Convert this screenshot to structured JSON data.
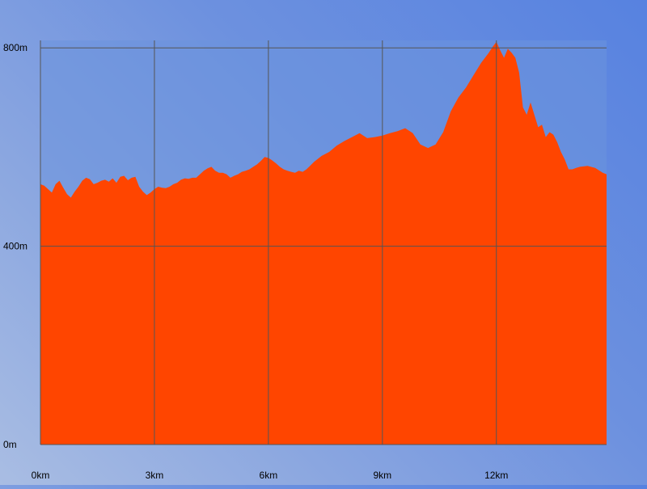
{
  "colors": {
    "fill": "#ff4500",
    "plot_background": "#6c93dd",
    "grid": "#555555"
  },
  "chart_data": {
    "type": "area",
    "title": "",
    "xlabel": "",
    "ylabel": "",
    "x_unit": "km",
    "y_unit": "m",
    "xlim": [
      0,
      14.9
    ],
    "ylim": [
      0,
      815
    ],
    "grid": true,
    "legend": "none",
    "x_ticks": [
      {
        "value": 0,
        "label": "0km"
      },
      {
        "value": 3,
        "label": "3km"
      },
      {
        "value": 6,
        "label": "6km"
      },
      {
        "value": 9,
        "label": "9km"
      },
      {
        "value": 12,
        "label": "12km"
      }
    ],
    "y_ticks": [
      {
        "value": 0,
        "label": "0m"
      },
      {
        "value": 400,
        "label": "400m"
      },
      {
        "value": 800,
        "label": "800m"
      }
    ],
    "series": [
      {
        "x": [
          0,
          0.1,
          0.2,
          0.3,
          0.4,
          0.5,
          0.6,
          0.7,
          0.8,
          0.9,
          1.0,
          1.1,
          1.2,
          1.3,
          1.4,
          1.5,
          1.6,
          1.7,
          1.8,
          1.9,
          2.0,
          2.1,
          2.2,
          2.3,
          2.4,
          2.5,
          2.6,
          2.7,
          2.8,
          2.9,
          3.0,
          3.1,
          3.2,
          3.3,
          3.4,
          3.5,
          3.6,
          3.7,
          3.8,
          3.9,
          4.0,
          4.1,
          4.2,
          4.3,
          4.4,
          4.5,
          4.6,
          4.7,
          4.8,
          4.9,
          5.0,
          5.1,
          5.2,
          5.3,
          5.4,
          5.5,
          5.6,
          5.7,
          5.8,
          5.9,
          6.0,
          6.1,
          6.2,
          6.3,
          6.4,
          6.5,
          6.6,
          6.7,
          6.8,
          6.9,
          7.0,
          7.2,
          7.4,
          7.6,
          7.8,
          8.0,
          8.2,
          8.4,
          8.6,
          8.8,
          9.0,
          9.2,
          9.4,
          9.6,
          9.8,
          10.0,
          10.2,
          10.4,
          10.6,
          10.8,
          11.0,
          11.2,
          11.4,
          11.6,
          11.8,
          11.9,
          12.0,
          12.1,
          12.2,
          12.3,
          12.4,
          12.5,
          12.6,
          12.7,
          12.8,
          12.9,
          13.0,
          13.1,
          13.2,
          13.3,
          13.4,
          13.5,
          13.6,
          13.7,
          13.8,
          13.9,
          14.0,
          14.1,
          14.2,
          14.4,
          14.6,
          14.8,
          14.9
        ],
        "y": [
          525,
          522,
          515,
          508,
          525,
          532,
          518,
          505,
          498,
          510,
          520,
          532,
          538,
          535,
          525,
          528,
          532,
          534,
          530,
          537,
          528,
          540,
          542,
          533,
          538,
          540,
          520,
          510,
          503,
          508,
          515,
          520,
          518,
          517,
          520,
          525,
          528,
          534,
          537,
          536,
          538,
          538,
          545,
          552,
          557,
          560,
          552,
          548,
          548,
          545,
          538,
          542,
          545,
          550,
          552,
          555,
          560,
          565,
          572,
          580,
          578,
          573,
          567,
          560,
          555,
          552,
          550,
          548,
          552,
          550,
          555,
          570,
          582,
          590,
          603,
          612,
          620,
          628,
          618,
          620,
          623,
          628,
          632,
          638,
          628,
          605,
          598,
          605,
          630,
          672,
          700,
          720,
          745,
          770,
          790,
          802,
          812,
          795,
          780,
          798,
          790,
          780,
          750,
          680,
          665,
          690,
          665,
          640,
          645,
          620,
          630,
          625,
          610,
          590,
          575,
          555,
          555,
          558,
          560,
          562,
          558,
          548,
          545
        ]
      }
    ]
  }
}
